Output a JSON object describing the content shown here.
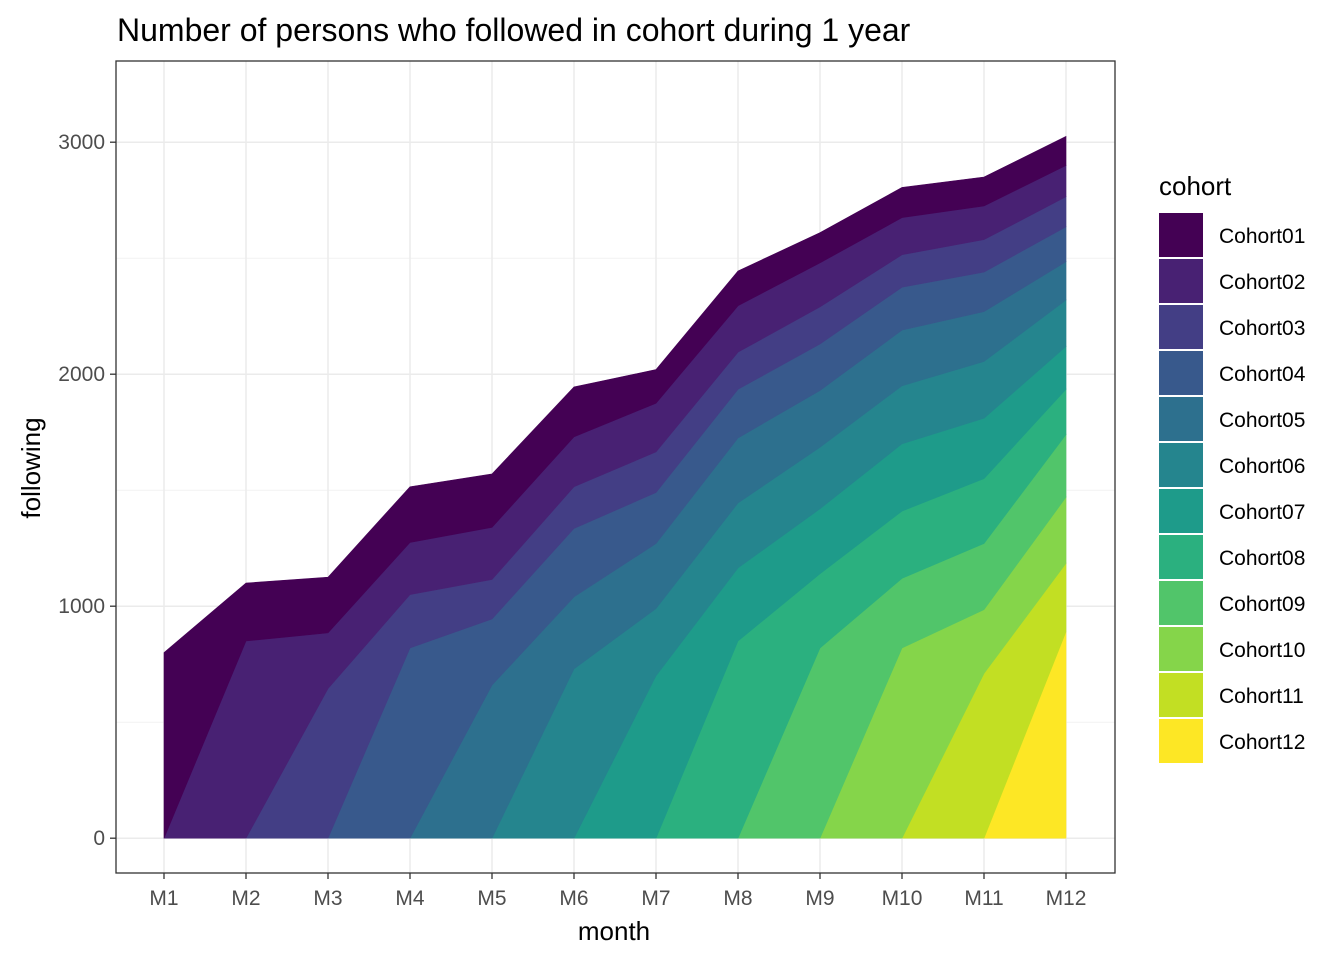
{
  "chart_data": {
    "type": "area",
    "stacked": true,
    "title": "Number of persons who followed in cohort during 1 year",
    "xlabel": "month",
    "ylabel": "following",
    "categories": [
      "M1",
      "M2",
      "M3",
      "M4",
      "M5",
      "M6",
      "M7",
      "M8",
      "M9",
      "M10",
      "M11",
      "M12"
    ],
    "yticks": [
      0,
      1000,
      2000,
      3000
    ],
    "ylim": [
      -150,
      3350
    ],
    "grid": true,
    "legend": {
      "title": "cohort",
      "position": "right"
    },
    "series": [
      {
        "name": "Cohort01",
        "color": "#440154",
        "values": [
          800,
          250,
          240,
          240,
          230,
          215,
          145,
          150,
          130,
          130,
          125,
          125
        ]
      },
      {
        "name": "Cohort02",
        "color": "#482173",
        "values": [
          0,
          850,
          240,
          225,
          225,
          215,
          210,
          200,
          190,
          160,
          145,
          135
        ]
      },
      {
        "name": "Cohort03",
        "color": "#433E85",
        "values": [
          0,
          0,
          645,
          230,
          170,
          180,
          175,
          160,
          160,
          140,
          140,
          130
        ]
      },
      {
        "name": "Cohort04",
        "color": "#38598C",
        "values": [
          0,
          0,
          0,
          820,
          285,
          295,
          220,
          210,
          200,
          185,
          170,
          150
        ]
      },
      {
        "name": "Cohort05",
        "color": "#2D708E",
        "values": [
          0,
          0,
          0,
          0,
          660,
          310,
          280,
          280,
          245,
          240,
          215,
          165
        ]
      },
      {
        "name": "Cohort06",
        "color": "#25858E",
        "values": [
          0,
          0,
          0,
          0,
          0,
          730,
          290,
          280,
          265,
          250,
          245,
          200
        ]
      },
      {
        "name": "Cohort07",
        "color": "#1E9B8A",
        "values": [
          0,
          0,
          0,
          0,
          0,
          0,
          700,
          315,
          280,
          290,
          260,
          185
        ]
      },
      {
        "name": "Cohort08",
        "color": "#2BB07F",
        "values": [
          0,
          0,
          0,
          0,
          0,
          0,
          0,
          850,
          320,
          290,
          280,
          195
        ]
      },
      {
        "name": "Cohort09",
        "color": "#51C56A",
        "values": [
          0,
          0,
          0,
          0,
          0,
          0,
          0,
          0,
          820,
          300,
          285,
          270
        ]
      },
      {
        "name": "Cohort10",
        "color": "#85D54A",
        "values": [
          0,
          0,
          0,
          0,
          0,
          0,
          0,
          0,
          0,
          820,
          275,
          285
        ]
      },
      {
        "name": "Cohort11",
        "color": "#C2DF23",
        "values": [
          0,
          0,
          0,
          0,
          0,
          0,
          0,
          0,
          0,
          0,
          710,
          295
        ]
      },
      {
        "name": "Cohort12",
        "color": "#FDE725",
        "values": [
          0,
          0,
          0,
          0,
          0,
          0,
          0,
          0,
          0,
          0,
          0,
          890
        ]
      }
    ]
  }
}
